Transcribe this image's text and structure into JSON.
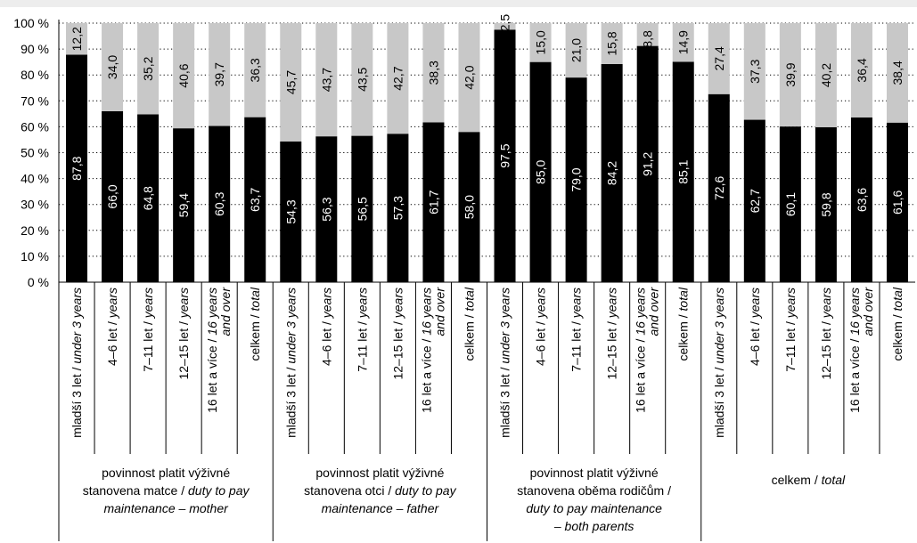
{
  "chart_data": {
    "type": "bar",
    "stacked": true,
    "ylim": [
      0,
      100
    ],
    "yticks": [
      "0 %",
      "10 %",
      "20 %",
      "30 %",
      "40 %",
      "50 %",
      "60 %",
      "70 %",
      "80 %",
      "90 %",
      "100 %"
    ],
    "grid": "dotted horizontal",
    "colors": {
      "bottom": "#000000",
      "top": "#c8c8c8",
      "band": "#ededed"
    },
    "groups": [
      {
        "label_lines": [
          [
            {
              "t": "povinnost platit výživné",
              "i": false
            }
          ],
          [
            {
              "t": "stanovena matce / ",
              "i": false
            },
            {
              "t": "duty to pay",
              "i": true
            }
          ],
          [
            {
              "t": "maintenance – mother",
              "i": true
            }
          ]
        ],
        "categories": [
          {
            "lines": [
              [
                {
                  "t": "mladší 3 let / ",
                  "i": false
                },
                {
                  "t": "under 3 years",
                  "i": true
                }
              ]
            ],
            "bottom": 87.8,
            "top": 12.2,
            "bottom_label": "87,8",
            "top_label": "12,2"
          },
          {
            "lines": [
              [
                {
                  "t": "4–6 let / ",
                  "i": false
                },
                {
                  "t": "years",
                  "i": true
                }
              ]
            ],
            "bottom": 66.0,
            "top": 34.0,
            "bottom_label": "66,0",
            "top_label": "34,0"
          },
          {
            "lines": [
              [
                {
                  "t": "7–11 let / ",
                  "i": false
                },
                {
                  "t": "years",
                  "i": true
                }
              ]
            ],
            "bottom": 64.8,
            "top": 35.2,
            "bottom_label": "64,8",
            "top_label": "35,2"
          },
          {
            "lines": [
              [
                {
                  "t": "12–15 let / ",
                  "i": false
                },
                {
                  "t": "years",
                  "i": true
                }
              ]
            ],
            "bottom": 59.4,
            "top": 40.6,
            "bottom_label": "59,4",
            "top_label": "40,6"
          },
          {
            "lines": [
              [
                {
                  "t": "16 let a více / ",
                  "i": false
                },
                {
                  "t": "16 years",
                  "i": true
                }
              ],
              [
                {
                  "t": "and over",
                  "i": true
                }
              ]
            ],
            "bottom": 60.3,
            "top": 39.7,
            "bottom_label": "60,3",
            "top_label": "39,7"
          },
          {
            "lines": [
              [
                {
                  "t": "celkem / ",
                  "i": false
                },
                {
                  "t": "total",
                  "i": true
                }
              ]
            ],
            "bottom": 63.7,
            "top": 36.3,
            "bottom_label": "63,7",
            "top_label": "36,3"
          }
        ]
      },
      {
        "label_lines": [
          [
            {
              "t": "povinnost platit výživné",
              "i": false
            }
          ],
          [
            {
              "t": "stanovena otci / ",
              "i": false
            },
            {
              "t": "duty to pay",
              "i": true
            }
          ],
          [
            {
              "t": "maintenance – father",
              "i": true
            }
          ]
        ],
        "categories": [
          {
            "lines": [
              [
                {
                  "t": "mladší 3 let / ",
                  "i": false
                },
                {
                  "t": "under 3 years",
                  "i": true
                }
              ]
            ],
            "bottom": 54.3,
            "top": 45.7,
            "bottom_label": "54,3",
            "top_label": "45,7"
          },
          {
            "lines": [
              [
                {
                  "t": "4–6 let / ",
                  "i": false
                },
                {
                  "t": "years",
                  "i": true
                }
              ]
            ],
            "bottom": 56.3,
            "top": 43.7,
            "bottom_label": "56,3",
            "top_label": "43,7"
          },
          {
            "lines": [
              [
                {
                  "t": "7–11 let / ",
                  "i": false
                },
                {
                  "t": "years",
                  "i": true
                }
              ]
            ],
            "bottom": 56.5,
            "top": 43.5,
            "bottom_label": "56,5",
            "top_label": "43,5"
          },
          {
            "lines": [
              [
                {
                  "t": "12–15 let / ",
                  "i": false
                },
                {
                  "t": "years",
                  "i": true
                }
              ]
            ],
            "bottom": 57.3,
            "top": 42.7,
            "bottom_label": "57,3",
            "top_label": "42,7"
          },
          {
            "lines": [
              [
                {
                  "t": "16 let a více / ",
                  "i": false
                },
                {
                  "t": "16 years",
                  "i": true
                }
              ],
              [
                {
                  "t": "and over",
                  "i": true
                }
              ]
            ],
            "bottom": 61.7,
            "top": 38.3,
            "bottom_label": "61,7",
            "top_label": "38,3"
          },
          {
            "lines": [
              [
                {
                  "t": "celkem / ",
                  "i": false
                },
                {
                  "t": "total",
                  "i": true
                }
              ]
            ],
            "bottom": 58.0,
            "top": 42.0,
            "bottom_label": "58,0",
            "top_label": "42,0"
          }
        ]
      },
      {
        "label_lines": [
          [
            {
              "t": "povinnost platit výživné",
              "i": false
            }
          ],
          [
            {
              "t": "stanovena oběma rodičům /",
              "i": false
            }
          ],
          [
            {
              "t": "duty to pay maintenance",
              "i": true
            }
          ],
          [
            {
              "t": "– both parents",
              "i": true
            }
          ]
        ],
        "categories": [
          {
            "lines": [
              [
                {
                  "t": "mladší 3 let / ",
                  "i": false
                },
                {
                  "t": "under 3 years",
                  "i": true
                }
              ]
            ],
            "bottom": 97.5,
            "top": 2.5,
            "bottom_label": "97,5",
            "top_label": "2,5"
          },
          {
            "lines": [
              [
                {
                  "t": "4–6 let / ",
                  "i": false
                },
                {
                  "t": "years",
                  "i": true
                }
              ]
            ],
            "bottom": 85.0,
            "top": 15.0,
            "bottom_label": "85,0",
            "top_label": "15,0"
          },
          {
            "lines": [
              [
                {
                  "t": "7–11 let / ",
                  "i": false
                },
                {
                  "t": "years",
                  "i": true
                }
              ]
            ],
            "bottom": 79.0,
            "top": 21.0,
            "bottom_label": "79,0",
            "top_label": "21,0"
          },
          {
            "lines": [
              [
                {
                  "t": "12–15 let / ",
                  "i": false
                },
                {
                  "t": "years",
                  "i": true
                }
              ]
            ],
            "bottom": 84.2,
            "top": 15.8,
            "bottom_label": "84,2",
            "top_label": "15,8"
          },
          {
            "lines": [
              [
                {
                  "t": "16 let a více / ",
                  "i": false
                },
                {
                  "t": "16 years",
                  "i": true
                }
              ],
              [
                {
                  "t": "and over",
                  "i": true
                }
              ]
            ],
            "bottom": 91.2,
            "top": 8.8,
            "bottom_label": "91,2",
            "top_label": "8,8"
          },
          {
            "lines": [
              [
                {
                  "t": "celkem / ",
                  "i": false
                },
                {
                  "t": "total",
                  "i": true
                }
              ]
            ],
            "bottom": 85.1,
            "top": 14.9,
            "bottom_label": "85,1",
            "top_label": "14,9"
          }
        ]
      },
      {
        "label_lines": [
          [
            {
              "t": "celkem / ",
              "i": false
            },
            {
              "t": "total",
              "i": true
            }
          ]
        ],
        "categories": [
          {
            "lines": [
              [
                {
                  "t": "mladší 3 let / ",
                  "i": false
                },
                {
                  "t": "under 3 years",
                  "i": true
                }
              ]
            ],
            "bottom": 72.6,
            "top": 27.4,
            "bottom_label": "72,6",
            "top_label": "27,4"
          },
          {
            "lines": [
              [
                {
                  "t": "4–6 let / ",
                  "i": false
                },
                {
                  "t": "years",
                  "i": true
                }
              ]
            ],
            "bottom": 62.7,
            "top": 37.3,
            "bottom_label": "62,7",
            "top_label": "37,3"
          },
          {
            "lines": [
              [
                {
                  "t": "7–11 let / ",
                  "i": false
                },
                {
                  "t": "years",
                  "i": true
                }
              ]
            ],
            "bottom": 60.1,
            "top": 39.9,
            "bottom_label": "60,1",
            "top_label": "39,9"
          },
          {
            "lines": [
              [
                {
                  "t": "12–15 let / ",
                  "i": false
                },
                {
                  "t": "years",
                  "i": true
                }
              ]
            ],
            "bottom": 59.8,
            "top": 40.2,
            "bottom_label": "59,8",
            "top_label": "40,2"
          },
          {
            "lines": [
              [
                {
                  "t": "16 let a více / ",
                  "i": false
                },
                {
                  "t": "16 years",
                  "i": true
                }
              ],
              [
                {
                  "t": "and over",
                  "i": true
                }
              ]
            ],
            "bottom": 63.6,
            "top": 36.4,
            "bottom_label": "63,6",
            "top_label": "36,4"
          },
          {
            "lines": [
              [
                {
                  "t": "celkem / ",
                  "i": false
                },
                {
                  "t": "total",
                  "i": true
                }
              ]
            ],
            "bottom": 61.6,
            "top": 38.4,
            "bottom_label": "61,6",
            "top_label": "38,4"
          }
        ]
      }
    ]
  }
}
